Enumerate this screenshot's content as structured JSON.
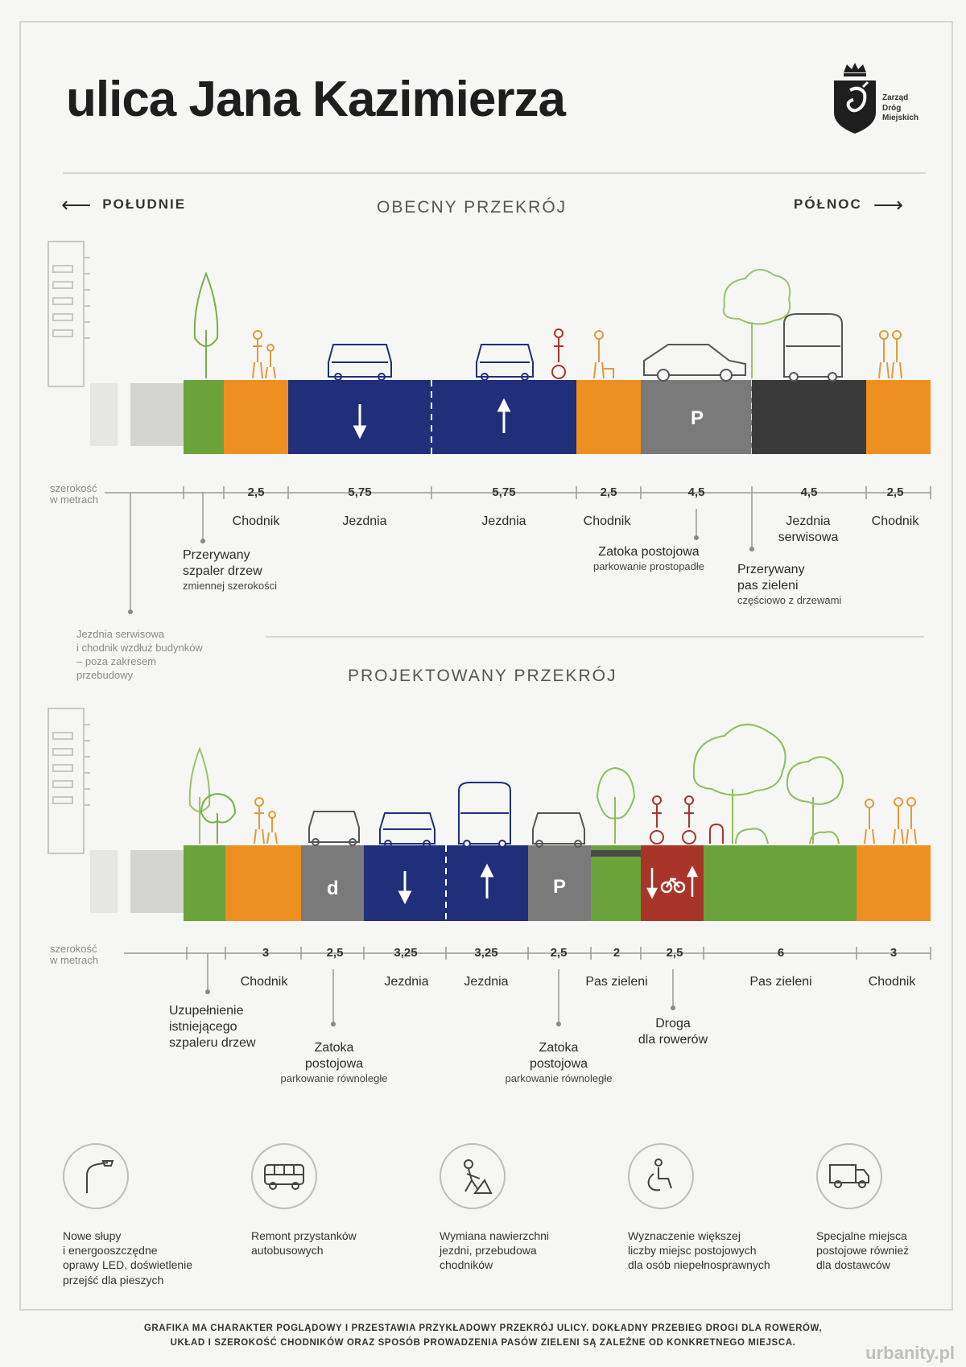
{
  "title": "ulica Jana Kazimierza",
  "logo": {
    "line1": "Zarząd",
    "line2": "Dróg",
    "line3": "Miejskich",
    "icon": "warsaw-mermaid-crest-icon"
  },
  "directions": {
    "left": "POŁUDNIE",
    "right": "PÓŁNOC"
  },
  "current": {
    "title": "OBECNY PRZEKRÓJ",
    "width_caption_1": "szerokość",
    "width_caption_2": "w metrach",
    "widths": [
      "2,5",
      "5,75",
      "5,75",
      "2,5",
      "4,5",
      "4,5",
      "2,5"
    ],
    "labels": {
      "chodnik1": "Chodnik",
      "jezdnia1": "Jezdnia",
      "jezdnia2": "Jezdnia",
      "chodnik2": "Chodnik",
      "jezdnia_serwisowa": "Jezdnia serwisowa",
      "chodnik3": "Chodnik"
    },
    "callouts": {
      "szpaler_1": "Przerywany",
      "szpaler_2": "szpaler drzew",
      "szpaler_sub": "zmiennej szerokości",
      "zatoka": "Zatoka postojowa",
      "zatoka_sub": "parkowanie prostopadłe",
      "pas_1": "Przerywany",
      "pas_2": "pas zieleni",
      "pas_sub": "częściowo z drzewami"
    },
    "parking_letter": "P",
    "note": [
      "Jezdnia serwisowa",
      "i chodnik wzdłuż budynków",
      "– poza zakresem",
      "przebudowy"
    ]
  },
  "projected": {
    "title": "PROJEKTOWANY PRZEKRÓJ",
    "width_caption_1": "szerokość",
    "width_caption_2": "w metrach",
    "widths": [
      "3",
      "2,5",
      "3,25",
      "3,25",
      "2,5",
      "2",
      "2,5",
      "6",
      "3"
    ],
    "labels": {
      "chodnik1": "Chodnik",
      "jezdnia1": "Jezdnia",
      "jezdnia2": "Jezdnia",
      "pas_zieleni1": "Pas zieleni",
      "pas_zieleni2": "Pas zieleni",
      "chodnik2": "Chodnik"
    },
    "callouts": {
      "uzup_1": "Uzupełnienie",
      "uzup_2": "istniejącego",
      "uzup_3": "szpaleru drzew",
      "zatoka1_1": "Zatoka",
      "zatoka1_2": "postojowa",
      "zatoka1_sub": "parkowanie równoległe",
      "zatoka2_1": "Zatoka",
      "zatoka2_2": "postojowa",
      "zatoka2_sub": "parkowanie równoległe",
      "droga_1": "Droga",
      "droga_2": "dla rowerów"
    },
    "delivery_letter": "d",
    "parking_letter": "P"
  },
  "benefits": [
    {
      "icon": "street-lamp-icon",
      "lines": [
        "Nowe słupy",
        "i energooszczędne",
        "oprawy LED, doświetlenie",
        "przejść dla pieszych"
      ]
    },
    {
      "icon": "bus-icon",
      "lines": [
        "Remont przystanków",
        "autobusowych"
      ]
    },
    {
      "icon": "road-worker-icon",
      "lines": [
        "Wymiana nawierzchni",
        "jezdni, przebudowa",
        "chodników"
      ]
    },
    {
      "icon": "wheelchair-icon",
      "lines": [
        "Wyznaczenie większej",
        "liczby miejsc postojowych",
        "dla osób niepełnosprawnych"
      ]
    },
    {
      "icon": "delivery-truck-icon",
      "lines": [
        "Specjalne miejsca",
        "postojowe również",
        "dla dostawców"
      ]
    }
  ],
  "footer": [
    "GRAFIKA MA CHARAKTER POGLĄDOWY I PRZESTAWIA PRZYKŁADOWY PRZEKRÓJ ULICY. DOKŁADNY PRZEBIEG DROGI DLA ROWERÓW,",
    "UKŁAD I SZEROKOŚĆ CHODNIKÓW ORAZ SPOSÓB PROWADZENIA PASÓW ZIELENI SĄ ZALEŻNE OD KONKRETNEGO MIEJSCA."
  ],
  "watermark": "urbanity.pl",
  "colors": {
    "sidewalk": "#ee8f22",
    "green": "#6aa33a",
    "road": "#1f2f7a",
    "parking": "#7a7a7a",
    "service_road": "#3a3a3a",
    "bike": "#a8342a",
    "existing": "#d4d4d2"
  }
}
